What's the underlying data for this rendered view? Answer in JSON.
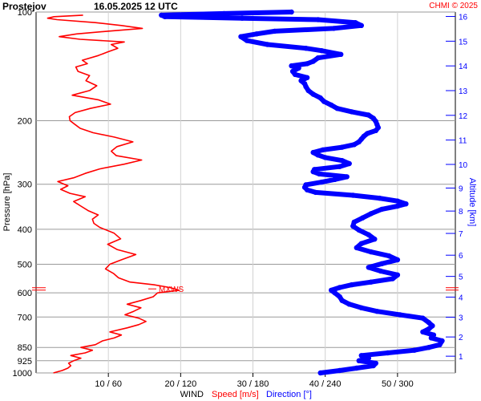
{
  "header": {
    "station": "Prostejov",
    "datetime": "16.05.2025 12 UTC",
    "credit": "CHMI © 2025"
  },
  "colors": {
    "speed": "#ff0000",
    "direction": "#0000ff",
    "grid": "#b4b4b4",
    "text": "#000000"
  },
  "chart_data": {
    "type": "line",
    "title": "",
    "y_left": {
      "label": "Pressure [hPa]",
      "scale": "log",
      "range": [
        1000,
        100
      ],
      "ticks": [
        100,
        200,
        300,
        400,
        500,
        600,
        700,
        850,
        925,
        1000
      ]
    },
    "y_right": {
      "label": "Altitude [km]",
      "ticks": [
        1,
        2,
        3,
        4,
        5,
        6,
        7,
        8,
        9,
        10,
        11,
        12,
        13,
        14,
        15,
        16
      ]
    },
    "x": {
      "title": "WIND",
      "speed_label": "Speed [m/s]",
      "direction_label": "Direction [°]",
      "tick_labels": [
        "10 / 60",
        "20 / 120",
        "30 / 180",
        "40 / 240",
        "50 / 300"
      ],
      "speed_range": [
        0,
        58
      ],
      "direction_range": [
        0,
        348
      ]
    },
    "max_wind_label": "MXWS",
    "max_wind_pressure": 585,
    "grid": true,
    "series": [
      {
        "name": "Speed [m/s]",
        "unit": "m/s",
        "points": [
          [
            1000,
            2.4
          ],
          [
            985,
            3.6
          ],
          [
            970,
            4.4
          ],
          [
            955,
            4.8
          ],
          [
            940,
            4.5
          ],
          [
            925,
            5.2
          ],
          [
            910,
            6.2
          ],
          [
            895,
            4.8
          ],
          [
            880,
            6.8
          ],
          [
            865,
            7.8
          ],
          [
            850,
            6.2
          ],
          [
            835,
            8.2
          ],
          [
            815,
            9.2
          ],
          [
            800,
            10.8
          ],
          [
            785,
            11.8
          ],
          [
            770,
            10.2
          ],
          [
            750,
            12.6
          ],
          [
            735,
            14.2
          ],
          [
            720,
            15.2
          ],
          [
            705,
            14.2
          ],
          [
            690,
            12.3
          ],
          [
            675,
            13.5
          ],
          [
            660,
            14.5
          ],
          [
            645,
            12.6
          ],
          [
            630,
            14.5
          ],
          [
            615,
            16.2
          ],
          [
            600,
            16.8
          ],
          [
            590,
            19.8
          ],
          [
            580,
            18.5
          ],
          [
            570,
            16.3
          ],
          [
            560,
            13.0
          ],
          [
            545,
            11.4
          ],
          [
            530,
            10.7
          ],
          [
            515,
            9.6
          ],
          [
            500,
            10.2
          ],
          [
            485,
            11.9
          ],
          [
            470,
            13.8
          ],
          [
            455,
            11.2
          ],
          [
            440,
            9.9
          ],
          [
            425,
            11.7
          ],
          [
            410,
            10.8
          ],
          [
            395,
            8.8
          ],
          [
            385,
            8.0
          ],
          [
            375,
            7.8
          ],
          [
            365,
            8.6
          ],
          [
            355,
            7.2
          ],
          [
            345,
            6.2
          ],
          [
            335,
            5.2
          ],
          [
            325,
            6.8
          ],
          [
            318,
            4.7
          ],
          [
            310,
            3.4
          ],
          [
            303,
            4.4
          ],
          [
            295,
            3.0
          ],
          [
            288,
            5.2
          ],
          [
            280,
            6.8
          ],
          [
            272,
            8.8
          ],
          [
            264,
            12.2
          ],
          [
            257,
            14.6
          ],
          [
            250,
            11.1
          ],
          [
            243,
            10.4
          ],
          [
            236,
            11.2
          ],
          [
            229,
            13.4
          ],
          [
            222,
            10.8
          ],
          [
            216,
            7.9
          ],
          [
            210,
            6.1
          ],
          [
            205,
            5.4
          ],
          [
            200,
            4.7
          ],
          [
            195,
            4.6
          ],
          [
            190,
            5.4
          ],
          [
            185,
            7.5
          ],
          [
            180,
            10.3
          ],
          [
            175,
            8.6
          ],
          [
            170,
            5.0
          ],
          [
            165,
            7.4
          ],
          [
            160,
            8.4
          ],
          [
            155,
            6.9
          ],
          [
            150,
            7.4
          ],
          [
            146,
            5.8
          ],
          [
            142,
            5.5
          ],
          [
            139,
            7.1
          ],
          [
            136,
            6.4
          ],
          [
            132,
            8.6
          ],
          [
            129,
            9.9
          ],
          [
            126,
            11.3
          ],
          [
            123,
            10.4
          ],
          [
            121,
            12.2
          ],
          [
            119,
            6.1
          ],
          [
            117,
            3.2
          ],
          [
            115,
            5.6
          ],
          [
            113,
            9.9
          ],
          [
            111,
            14.7
          ],
          [
            109,
            11.8
          ],
          [
            107,
            8.2
          ],
          [
            105,
            2.9
          ],
          [
            104,
            1.6
          ],
          [
            103,
            2.5
          ],
          [
            102,
            6.5
          ]
        ]
      },
      {
        "name": "Direction [°]",
        "unit": "deg",
        "points": [
          [
            1000,
            236
          ],
          [
            985,
            252
          ],
          [
            970,
            266
          ],
          [
            955,
            280
          ],
          [
            940,
            282
          ],
          [
            925,
            268
          ],
          [
            910,
            276
          ],
          [
            895,
            270
          ],
          [
            880,
            292
          ],
          [
            865,
            314
          ],
          [
            850,
            326
          ],
          [
            835,
            335
          ],
          [
            815,
            337
          ],
          [
            800,
            328
          ],
          [
            785,
            330
          ],
          [
            770,
            321
          ],
          [
            755,
            326
          ],
          [
            740,
            329
          ],
          [
            725,
            326
          ],
          [
            705,
            321
          ],
          [
            690,
            302
          ],
          [
            675,
            283
          ],
          [
            660,
            270
          ],
          [
            645,
            260
          ],
          [
            630,
            254
          ],
          [
            615,
            252
          ],
          [
            600,
            248
          ],
          [
            590,
            245
          ],
          [
            580,
            252
          ],
          [
            570,
            262
          ],
          [
            560,
            278
          ],
          [
            548,
            296
          ],
          [
            535,
            300
          ],
          [
            522,
            286
          ],
          [
            510,
            276
          ],
          [
            498,
            287
          ],
          [
            486,
            300
          ],
          [
            474,
            293
          ],
          [
            462,
            278
          ],
          [
            450,
            266
          ],
          [
            438,
            270
          ],
          [
            426,
            281
          ],
          [
            414,
            276
          ],
          [
            402,
            268
          ],
          [
            392,
            263
          ],
          [
            382,
            264
          ],
          [
            372,
            271
          ],
          [
            362,
            278
          ],
          [
            352,
            287
          ],
          [
            345,
            300
          ],
          [
            340,
            307
          ],
          [
            334,
            300
          ],
          [
            328,
            285
          ],
          [
            322,
            263
          ],
          [
            316,
            232
          ],
          [
            311,
            225
          ],
          [
            306,
            223
          ],
          [
            301,
            224
          ],
          [
            296,
            237
          ],
          [
            291,
            248
          ],
          [
            286,
            258
          ],
          [
            281,
            235
          ],
          [
            277,
            230
          ],
          [
            273,
            231
          ],
          [
            268,
            252
          ],
          [
            263,
            260
          ],
          [
            258,
            254
          ],
          [
            253,
            240
          ],
          [
            249,
            234
          ],
          [
            245,
            230
          ],
          [
            241,
            238
          ],
          [
            237,
            254
          ],
          [
            233,
            264
          ],
          [
            229,
            268
          ],
          [
            225,
            270
          ],
          [
            221,
            272
          ],
          [
            217,
            275
          ],
          [
            213,
            282
          ],
          [
            209,
            284
          ],
          [
            205,
            283
          ],
          [
            201,
            282
          ],
          [
            197,
            280
          ],
          [
            193,
            276
          ],
          [
            189,
            262
          ],
          [
            185,
            250
          ],
          [
            181,
            245
          ],
          [
            177,
            239
          ],
          [
            173,
            236
          ],
          [
            169,
            230
          ],
          [
            165,
            226
          ],
          [
            161,
            224
          ],
          [
            158,
            223
          ],
          [
            155,
            220
          ],
          [
            152,
            225
          ],
          [
            149,
            215
          ],
          [
            146,
            213
          ],
          [
            143,
            218
          ],
          [
            141,
            212
          ],
          [
            139,
            225
          ],
          [
            137,
            230
          ],
          [
            134,
            234
          ],
          [
            131,
            253
          ],
          [
            128,
            237
          ],
          [
            126,
            224
          ],
          [
            123,
            192
          ],
          [
            120,
            175
          ],
          [
            117,
            170
          ],
          [
            115,
            183
          ],
          [
            113,
            198
          ],
          [
            111,
            247
          ],
          [
            109,
            270
          ],
          [
            107,
            265
          ],
          [
            105,
            234
          ],
          [
            104,
            171
          ],
          [
            103,
            107
          ],
          [
            102,
            104
          ],
          [
            101,
            156
          ],
          [
            100,
            212
          ]
        ]
      }
    ]
  }
}
